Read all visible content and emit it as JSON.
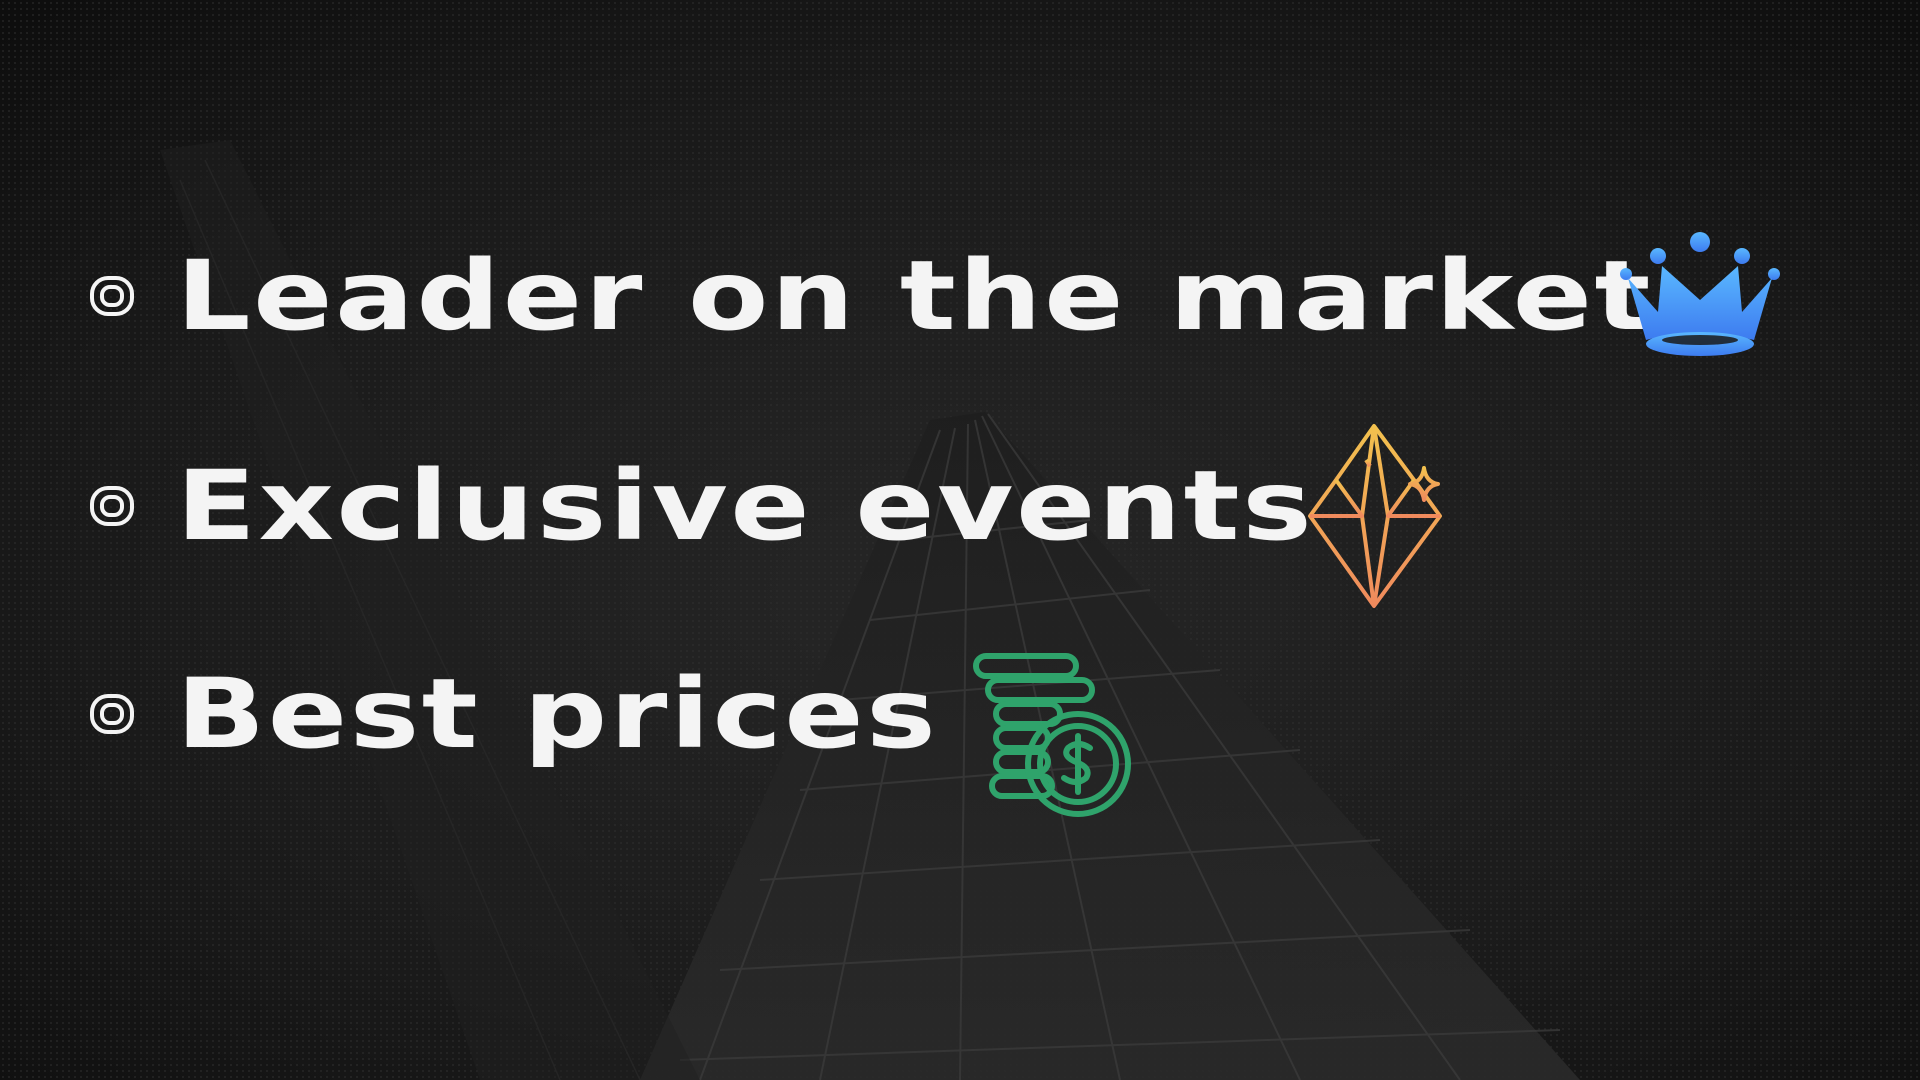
{
  "features": [
    {
      "label": "Leader on the market",
      "icon": "crown-icon"
    },
    {
      "label": "Exclusive events",
      "icon": "diamond-icon"
    },
    {
      "label": "Best prices",
      "icon": "coins-icon"
    }
  ],
  "colors": {
    "background": "#141414",
    "text": "#f4f4f4",
    "crown_top": "#5ab8ff",
    "crown_bottom": "#3d7bf0",
    "diamond_top": "#f2c14e",
    "diamond_bottom": "#f08a5d",
    "coins": "#2fa36b"
  }
}
